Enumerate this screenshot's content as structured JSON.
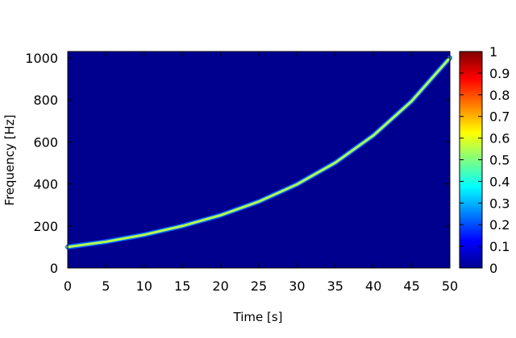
{
  "chart_data": {
    "type": "heatmap",
    "title": "",
    "xlabel": "Time [s]",
    "ylabel": "Frequency [Hz]",
    "xlim": [
      0,
      50
    ],
    "ylim": [
      0,
      1030
    ],
    "x_ticks": [
      0,
      5,
      10,
      15,
      20,
      25,
      30,
      35,
      40,
      45,
      50
    ],
    "y_ticks": [
      0,
      200,
      400,
      600,
      800,
      1000
    ],
    "background_value": 0.1,
    "colorscale": "jet",
    "colorbar": {
      "min": 0,
      "max": 1,
      "ticks": [
        0,
        0.1,
        0.2,
        0.3,
        0.4,
        0.5,
        0.6,
        0.7,
        0.8,
        0.9,
        1
      ]
    },
    "series": [
      {
        "peak_value": 0.55,
        "x": [
          0,
          5,
          10,
          15,
          20,
          25,
          30,
          35,
          40,
          45,
          50
        ],
        "y": [
          100,
          125,
          158,
          200,
          251,
          316,
          398,
          501,
          631,
          794,
          1000
        ]
      }
    ],
    "grid": false,
    "legend": "none"
  }
}
